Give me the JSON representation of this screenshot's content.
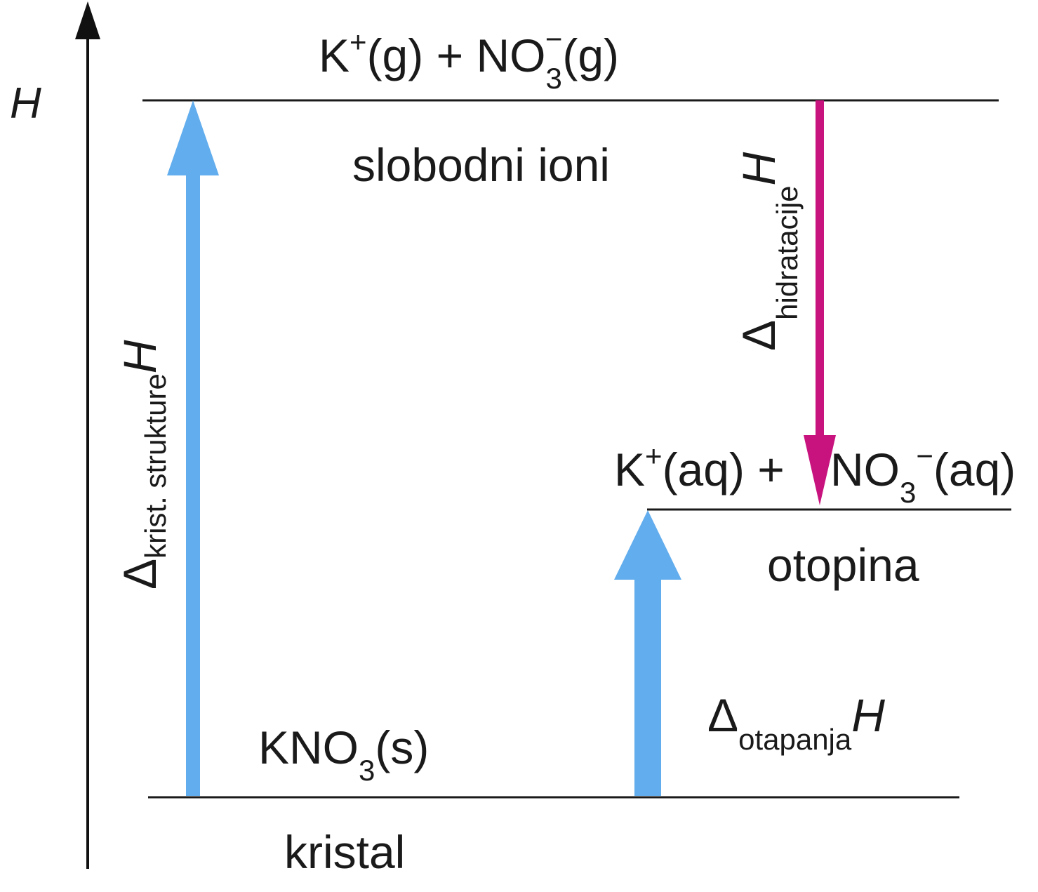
{
  "axis": {
    "label": "H"
  },
  "levels": {
    "gas": {
      "species_1": "K",
      "charge_1": "+",
      "state_1": "(g) + NO",
      "subscript": "3",
      "charge_2": "−",
      "state_2": "(g)",
      "description": "slobodni ioni"
    },
    "solution": {
      "species_1": "K",
      "charge_1": "+",
      "state_1": "(aq) + ",
      "species_2": "NO",
      "subscript": "3",
      "charge_2": "−",
      "state_2": "(aq)",
      "description": "otopina"
    },
    "crystal": {
      "formula": "KNO",
      "subscript": "3",
      "state": "(s)",
      "description": "kristal"
    }
  },
  "arrows": {
    "lattice": {
      "delta": "Δ",
      "subscript": "krist. strukture",
      "symbol": "H",
      "color": "#62aded"
    },
    "hydration": {
      "delta": "Δ",
      "subscript": "hidratacije",
      "symbol": "H",
      "color": "#c8137f"
    },
    "solution": {
      "delta": "Δ",
      "subscript": "otapanja",
      "symbol": "H",
      "color": "#62aded"
    }
  },
  "colors": {
    "line": "#1a1a1a",
    "axis": "#111111"
  }
}
